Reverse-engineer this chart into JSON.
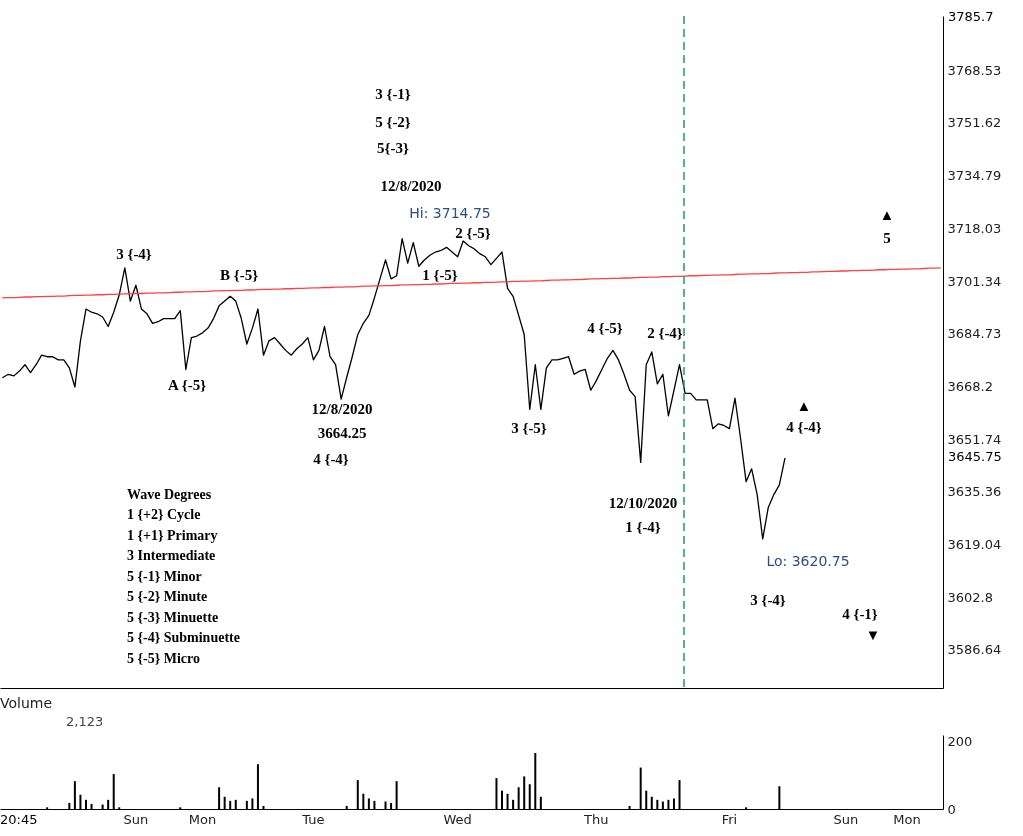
{
  "chart_data": [
    {
      "type": "line",
      "categories": [
        null,
        null,
        null,
        null,
        null,
        null,
        null,
        null,
        null,
        null,
        null,
        null,
        null,
        null,
        null,
        null,
        null,
        null,
        null,
        null,
        null,
        null,
        null,
        null,
        null,
        null,
        null,
        null,
        null,
        null,
        null,
        null,
        null,
        null,
        null,
        null,
        null,
        null,
        null,
        null,
        null,
        null,
        null,
        null,
        null,
        null,
        null,
        null,
        null,
        null,
        null,
        null,
        null,
        null,
        null,
        null,
        null,
        null,
        null,
        null,
        null,
        null,
        null,
        null,
        null,
        null,
        null,
        null,
        null,
        null,
        null,
        null,
        null,
        null,
        null,
        null,
        null,
        null,
        null,
        null,
        null,
        null,
        null,
        null,
        null,
        null,
        null,
        null,
        null,
        null,
        null,
        null,
        null,
        null,
        null,
        null,
        null,
        null,
        null,
        null,
        null,
        null,
        null,
        null,
        null,
        null,
        null,
        null,
        null,
        null,
        null,
        null,
        null,
        null,
        null,
        null,
        null,
        null,
        null,
        null,
        null,
        null,
        null,
        null,
        null,
        null,
        null,
        null,
        null,
        null,
        null,
        null,
        null,
        null,
        null,
        null,
        null,
        null,
        null,
        null,
        null,
        null,
        null,
        null,
        null,
        null,
        null,
        null,
        null,
        null,
        null,
        null,
        null,
        null,
        null,
        null,
        null,
        null,
        null,
        null,
        null,
        null,
        null,
        null,
        null,
        null,
        null,
        null,
        null,
        null
      ],
      "series": [
        {
          "color": "#000000",
          "values": [
            3671,
            3672,
            3671.5,
            3673,
            3675,
            3672.5,
            3675,
            3678,
            3677.5,
            3677.5,
            3676.5,
            3676.5,
            3674,
            3668,
            3682.5,
            3692.5,
            3691.5,
            3691,
            3690,
            3687,
            3691.5,
            3697,
            3705.5,
            3695,
            3700,
            3692.5,
            3691,
            3688,
            3688.5,
            3689.5,
            3689.5,
            3689.5,
            3692,
            3673.5,
            3683.5,
            3684,
            3685,
            3686.5,
            3689.5,
            3693.5,
            3695,
            3696.5,
            3695,
            3689.5,
            3681.5,
            3686.5,
            3692.5,
            3678,
            3682.5,
            3683.5,
            3681.5,
            3679.5,
            3678,
            3680,
            3681.5,
            3683.5,
            3676.5,
            3679.5,
            3687,
            3677.5,
            3675,
            3664.25,
            3671,
            3677.5,
            3684.5,
            3688,
            3690.5,
            3696,
            3702,
            3708,
            3702,
            3703,
            3714.75,
            3707,
            3713.5,
            3706,
            3708,
            3709.5,
            3710.5,
            3711,
            3712,
            3710.5,
            3709,
            3714,
            3712.5,
            3711.5,
            3710,
            3709,
            3706.5,
            3708.5,
            3710.5,
            3699,
            3696.5,
            3690.5,
            3684.5,
            3661,
            3675,
            3661,
            3674,
            3676.5,
            3676.5,
            3677,
            3677.5,
            3672,
            3673,
            3673.5,
            3667,
            3670,
            3673.5,
            3677,
            3679.5,
            3676.5,
            3672,
            3667,
            3665,
            3644.5,
            3675,
            3679,
            3669,
            3672,
            3659,
            3667,
            3675,
            3666,
            3666,
            3664,
            3664,
            3664,
            3655,
            3656.5,
            3656,
            3655,
            3664.5,
            3652,
            3638.5,
            3642.5,
            3634.5,
            3620.75,
            3630.5,
            3634.5,
            3637.5,
            3645.75,
            null,
            null,
            null,
            null,
            null,
            null,
            null,
            null,
            null,
            null,
            null,
            null,
            null,
            null,
            null,
            null,
            null,
            null,
            null,
            null,
            null,
            null,
            null,
            null,
            null,
            null,
            null,
            null
          ]
        },
        {
          "type": "line",
          "color": "#ff4040",
          "values": [
            3696.0,
            3696.1,
            3696.1,
            3696.2,
            3696.3,
            3696.3,
            3696.4,
            3696.4,
            3696.5,
            3696.5,
            3696.6,
            3696.6,
            3696.7,
            3696.8,
            3696.8,
            3696.9,
            3696.9,
            3697.0,
            3697.0,
            3697.1,
            3697.1,
            3697.2,
            3697.3,
            3697.3,
            3697.4,
            3697.4,
            3697.5,
            3697.5,
            3697.6,
            3697.6,
            3697.7,
            3697.8,
            3697.8,
            3697.9,
            3697.9,
            3698.0,
            3698.0,
            3698.1,
            3698.2,
            3698.2,
            3698.3,
            3698.3,
            3698.4,
            3698.4,
            3698.5,
            3698.5,
            3698.6,
            3698.7,
            3698.7,
            3698.8,
            3698.8,
            3698.9,
            3698.9,
            3699.0,
            3699.0,
            3699.1,
            3699.2,
            3699.2,
            3699.3,
            3699.3,
            3699.4,
            3699.4,
            3699.5,
            3699.5,
            3699.6,
            3699.7,
            3699.7,
            3699.8,
            3699.8,
            3699.9,
            3699.9,
            3700.0,
            3700.1,
            3700.1,
            3700.2,
            3700.2,
            3700.3,
            3700.3,
            3700.4,
            3700.4,
            3700.5,
            3700.6,
            3700.6,
            3700.7,
            3700.7,
            3700.8,
            3700.8,
            3700.9,
            3700.9,
            3701.0,
            3701.1,
            3701.1,
            3701.2,
            3701.2,
            3701.3,
            3701.3,
            3701.4,
            3701.4,
            3701.5,
            3701.6,
            3701.6,
            3701.7,
            3701.7,
            3701.8,
            3701.8,
            3701.9,
            3702.0,
            3702.0,
            3702.1,
            3702.1,
            3702.2,
            3702.2,
            3702.3,
            3702.3,
            3702.4,
            3702.5,
            3702.5,
            3702.6,
            3702.6,
            3702.7,
            3702.7,
            3702.8,
            3702.8,
            3702.9,
            3703.0,
            3703.0,
            3703.1,
            3703.1,
            3703.2,
            3703.2,
            3703.3,
            3703.3,
            3703.4,
            3703.5,
            3703.5,
            3703.6,
            3703.6,
            3703.7,
            3703.7,
            3703.8,
            3703.9,
            3703.9,
            3704.0,
            3704.0,
            3704.1,
            3704.1,
            3704.2,
            3704.2,
            3704.3,
            3704.4,
            3704.4,
            3704.5,
            3704.5,
            3704.6,
            3704.6,
            3704.7,
            3704.7,
            3704.8,
            3704.9,
            3704.9,
            3705.0,
            3705.0,
            3705.1,
            3705.1,
            3705.2,
            3705.2,
            3705.3,
            3705.4,
            3705.4,
            3705.5
          ]
        }
      ],
      "ylim": [
        3575,
        3786
      ],
      "yticks": [
        3768.53,
        3751.62,
        3734.79,
        3718.03,
        3701.34,
        3684.73,
        3668.2,
        3651.74,
        3635.36,
        3619.04,
        3602.8,
        3586.64
      ],
      "log": "y",
      "annotations": [
        "3 {-4}",
        "B {-5}",
        "A {-5}",
        "12/8/2020",
        "3664.25",
        "4 {-4}",
        "3 {-1}",
        "5 {-2}",
        "5{-3}",
        "12/8/2020",
        "Hi: 3714.75",
        "2 {-5}",
        "1 {-5}",
        "3 {-5}",
        "4 {-5}",
        "2 {-4}",
        "12/10/2020",
        "1 {-4}",
        "▲",
        "4 {-4}",
        "Lo: 3620.75",
        "3 {-4}",
        "▲",
        "5",
        "4 {-1}",
        "▼",
        "3785.7",
        "3645.75",
        "Wave Degrees",
        "1 {+2} Cycle",
        "1 {+1} Primary",
        "3 Intermediate",
        "5 {-1} Minor",
        "5 {-2} Minute",
        "5 {-3} Minuette",
        "5 {-4} Subminuette",
        "5 {-5} Micro"
      ]
    },
    {
      "type": "bar",
      "title": "Volume",
      "categories": [
        null,
        null,
        null,
        null,
        null,
        null,
        null,
        null,
        null,
        null,
        null,
        null,
        null,
        null,
        null,
        null,
        null,
        null,
        null,
        null,
        null,
        null,
        null,
        null,
        "Sun",
        null,
        null,
        null,
        null,
        null,
        null,
        null,
        null,
        null,
        null,
        null,
        "Mon",
        null,
        null,
        null,
        null,
        null,
        null,
        null,
        null,
        null,
        null,
        null,
        null,
        null,
        null,
        null,
        null,
        null,
        null,
        null,
        "Tue",
        null,
        null,
        null,
        null,
        null,
        null,
        null,
        null,
        null,
        null,
        null,
        null,
        null,
        null,
        null,
        null,
        null,
        null,
        null,
        null,
        null,
        null,
        null,
        null,
        null,
        "Wed",
        null,
        null,
        null,
        null,
        null,
        null,
        null,
        null,
        null,
        null,
        null,
        null,
        null,
        null,
        null,
        null,
        null,
        null,
        null,
        null,
        null,
        null,
        null,
        null,
        "Thu",
        null,
        null,
        null,
        null,
        null,
        null,
        null,
        null,
        null,
        null,
        null,
        null,
        null,
        null,
        null,
        null,
        null,
        null,
        null,
        null,
        null,
        null,
        null,
        "Fri",
        null,
        null,
        null,
        null,
        null,
        null,
        null,
        null,
        null,
        null,
        null,
        null,
        null,
        null,
        null,
        null,
        null,
        null,
        null,
        null,
        "Sun",
        null,
        null,
        null,
        null,
        null,
        null,
        null,
        null,
        null,
        null,
        "Mon",
        null,
        null,
        null,
        null,
        null,
        null
      ],
      "series": [
        {
          "color": "#000000",
          "values": [
            null,
            null,
            null,
            null,
            null,
            null,
            null,
            null,
            5,
            null,
            null,
            null,
            18,
            82,
            42,
            27,
            15,
            null,
            13,
            27,
            103,
            5,
            null,
            null,
            null,
            null,
            null,
            null,
            null,
            null,
            null,
            null,
            5,
            null,
            null,
            null,
            null,
            null,
            null,
            64,
            36,
            24,
            27,
            null,
            24,
            31,
            132,
            9,
            null,
            null,
            null,
            null,
            null,
            null,
            null,
            null,
            null,
            null,
            null,
            null,
            null,
            null,
            9,
            null,
            85,
            45,
            31,
            24,
            null,
            22,
            18,
            82,
            null,
            null,
            null,
            null,
            null,
            null,
            null,
            null,
            null,
            null,
            null,
            null,
            null,
            null,
            null,
            null,
            null,
            91,
            54,
            45,
            27,
            64,
            96,
            73,
            165,
            36,
            null,
            null,
            null,
            null,
            null,
            null,
            null,
            null,
            null,
            null,
            null,
            null,
            null,
            null,
            null,
            9,
            null,
            122,
            54,
            36,
            27,
            22,
            27,
            31,
            85,
            null,
            null,
            null,
            null,
            null,
            null,
            null,
            null,
            null,
            null,
            null,
            5,
            null,
            null,
            null,
            null,
            null,
            67,
            null,
            null,
            null,
            null,
            null,
            null,
            null,
            null,
            null,
            null,
            null,
            null,
            null,
            null,
            null,
            null,
            null,
            null,
            null,
            null,
            null,
            null,
            null,
            null,
            null,
            null,
            null,
            null,
            null
          ]
        }
      ],
      "ylim": [
        0,
        218
      ],
      "yticks": [
        0,
        200
      ],
      "annotations": [
        "2,123",
        "20:45"
      ]
    }
  ]
}
